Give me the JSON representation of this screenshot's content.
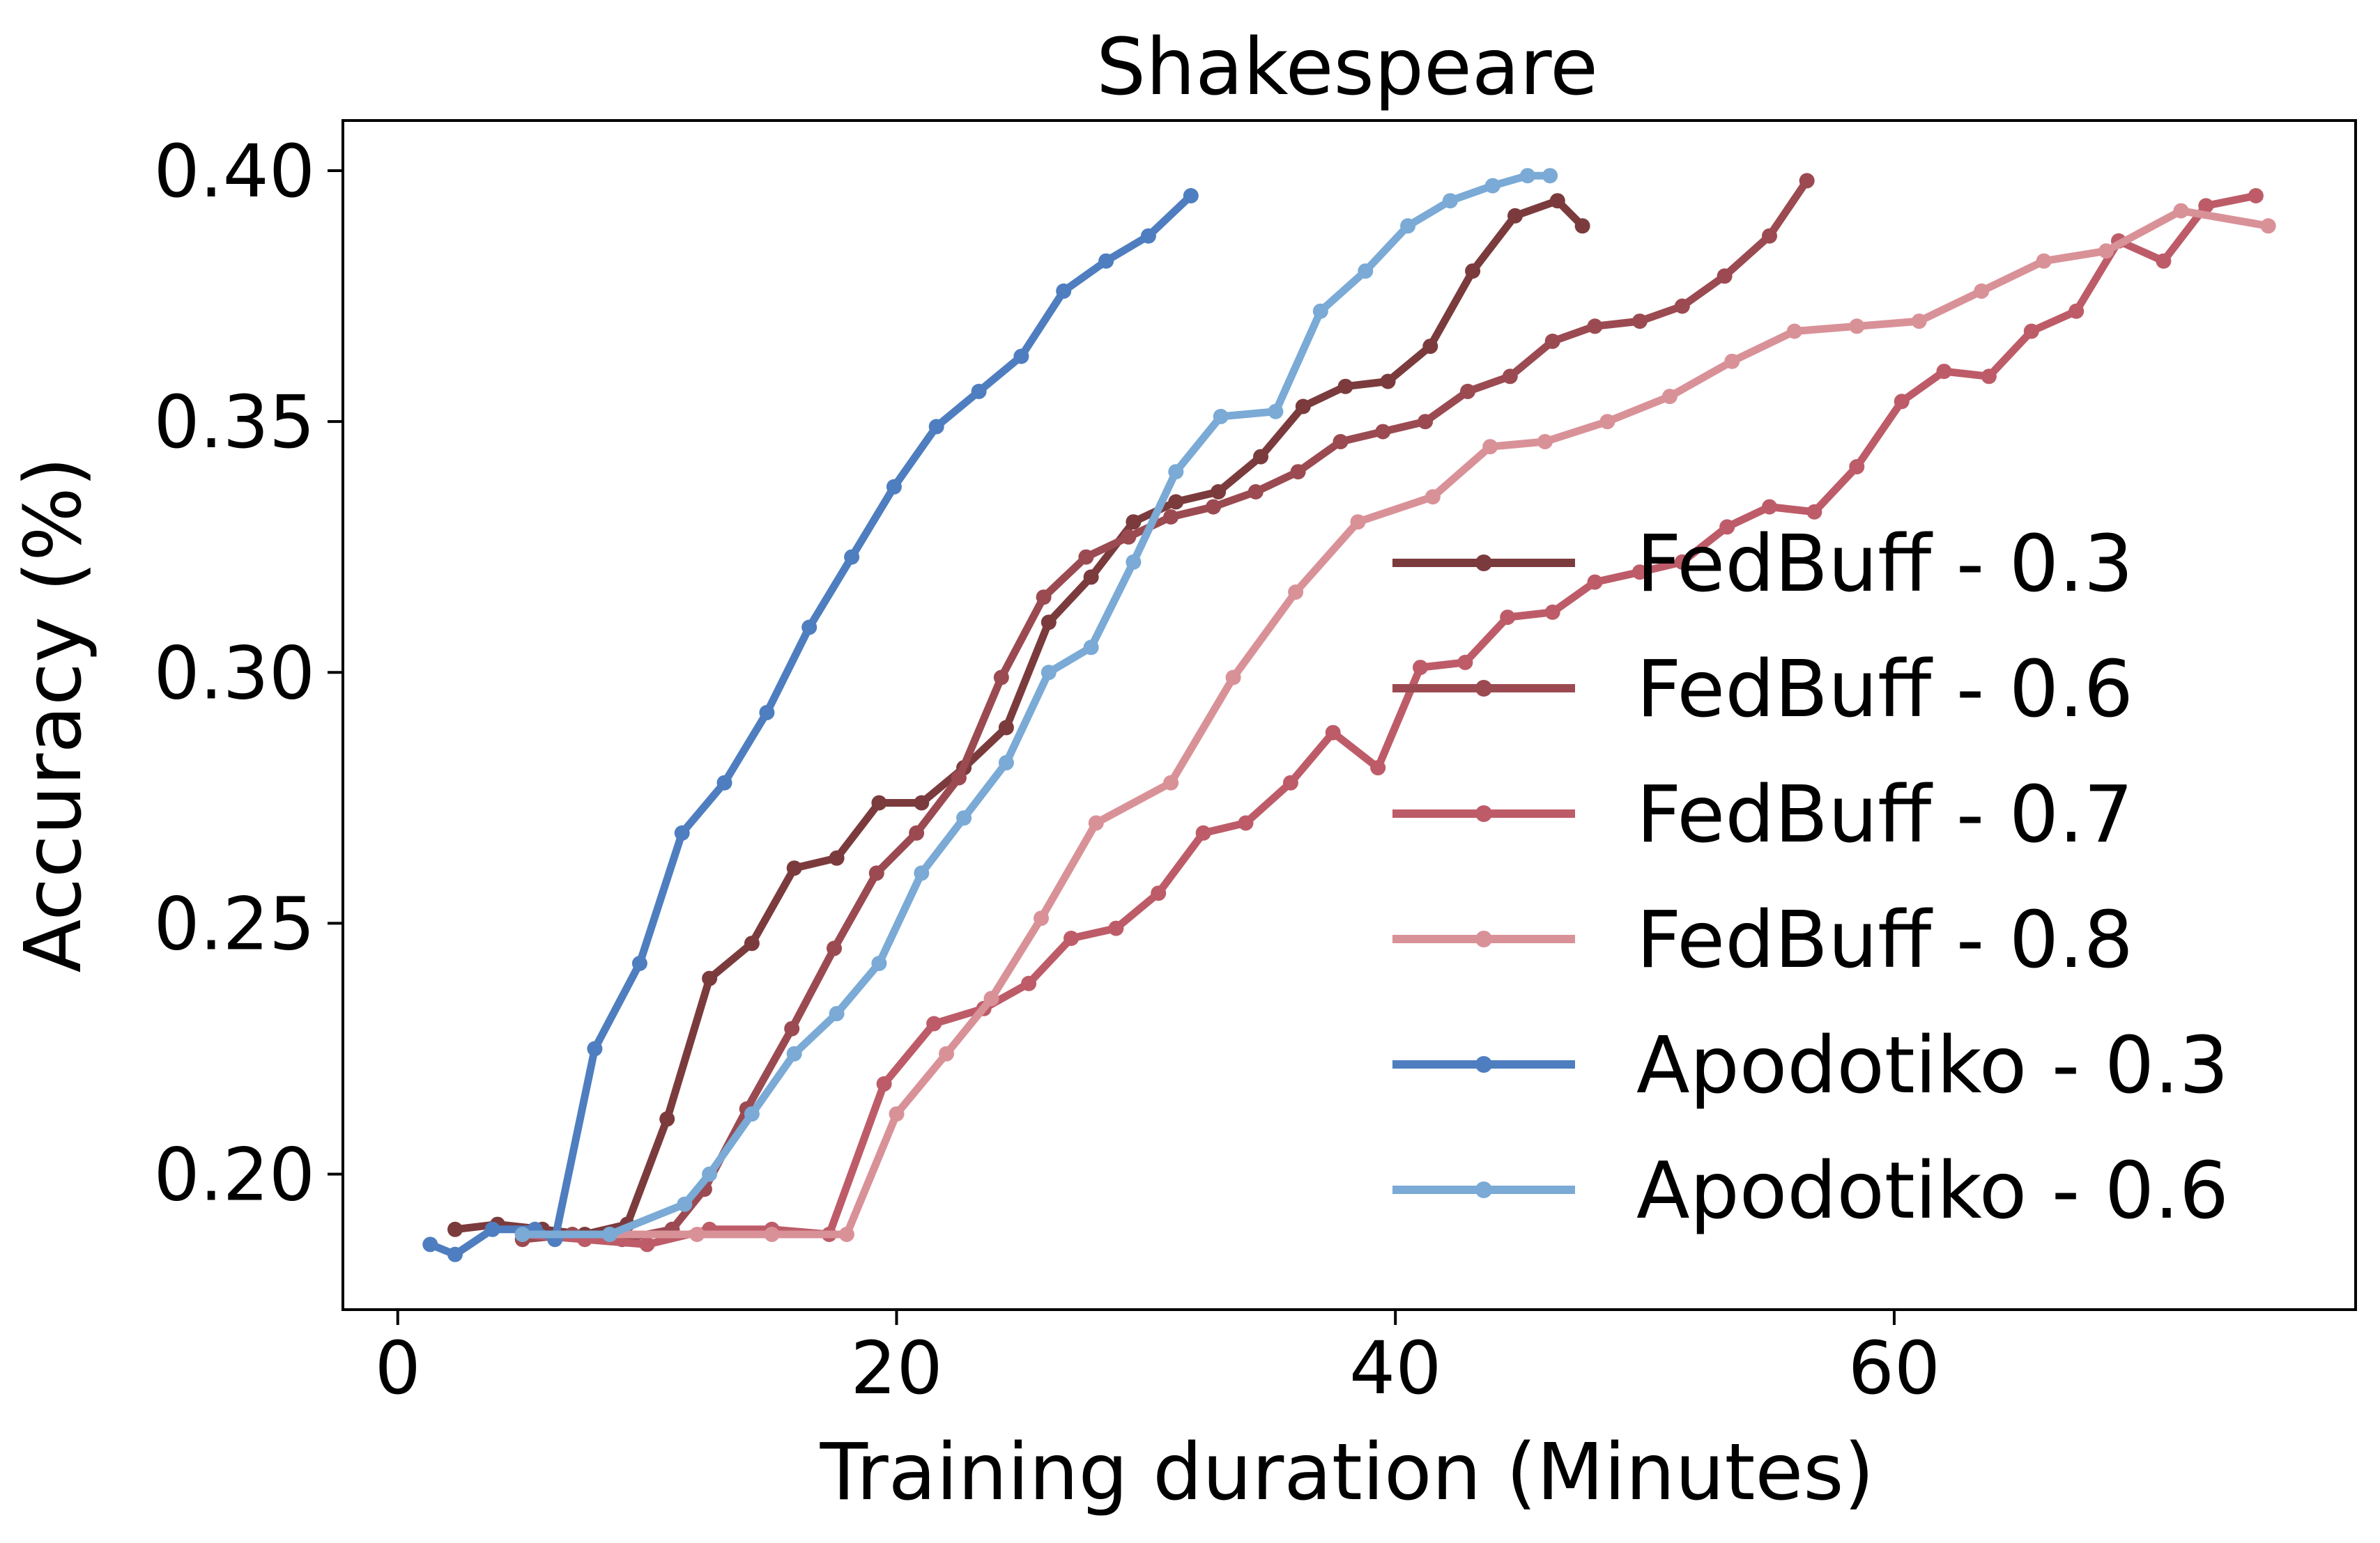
{
  "chart_data": {
    "type": "line",
    "title": "Shakespeare",
    "xlabel": "Training duration (Minutes)",
    "ylabel": "Accuracy (%)",
    "xlim": [
      -2.2,
      78.5
    ],
    "ylim": [
      0.173,
      0.41
    ],
    "xticks": [
      0,
      20,
      40,
      60
    ],
    "xtick_labels": [
      "0",
      "20",
      "40",
      "60"
    ],
    "yticks": [
      0.2,
      0.25,
      0.3,
      0.35,
      0.4
    ],
    "ytick_labels": [
      "0.20",
      "0.25",
      "0.30",
      "0.35",
      "0.40"
    ],
    "grid": false,
    "legend_position": "right",
    "series": [
      {
        "name": "FedBuff - 0.3",
        "color": "#7b3b3d",
        "x": [
          2.3,
          4.0,
          5.8,
          7.5,
          9.2,
          10.8,
          12.5,
          14.2,
          15.9,
          17.6,
          19.3,
          21.0,
          22.7,
          24.4,
          26.1,
          27.8,
          29.5,
          31.2,
          32.9,
          34.6,
          36.3,
          38.0,
          39.7,
          41.4,
          43.1,
          44.8,
          46.5,
          47.5
        ],
        "y": [
          0.189,
          0.19,
          0.189,
          0.188,
          0.19,
          0.211,
          0.239,
          0.246,
          0.261,
          0.263,
          0.274,
          0.274,
          0.281,
          0.289,
          0.31,
          0.319,
          0.33,
          0.334,
          0.336,
          0.343,
          0.353,
          0.357,
          0.358,
          0.365,
          0.38,
          0.391,
          0.394,
          0.389
        ]
      },
      {
        "name": "FedBuff - 0.6",
        "color": "#9b4a51",
        "x": [
          5.0,
          7.0,
          9.0,
          11.0,
          12.3,
          14.0,
          15.8,
          17.5,
          19.2,
          20.8,
          22.5,
          24.2,
          25.9,
          27.6,
          29.3,
          31.0,
          32.7,
          34.4,
          36.1,
          37.8,
          39.5,
          41.2,
          42.9,
          44.6,
          46.3,
          48.0,
          49.8,
          51.5,
          53.2,
          55.0,
          56.5
        ],
        "y": [
          0.187,
          0.188,
          0.187,
          0.189,
          0.197,
          0.213,
          0.229,
          0.245,
          0.26,
          0.268,
          0.279,
          0.299,
          0.315,
          0.323,
          0.327,
          0.331,
          0.333,
          0.336,
          0.34,
          0.346,
          0.348,
          0.35,
          0.356,
          0.359,
          0.366,
          0.369,
          0.37,
          0.373,
          0.379,
          0.387,
          0.398
        ]
      },
      {
        "name": "FedBuff - 0.7",
        "color": "#bd5c68",
        "x": [
          5.0,
          7.5,
          10.0,
          12.5,
          15.0,
          17.3,
          19.5,
          21.5,
          23.5,
          25.3,
          27.0,
          28.8,
          30.5,
          32.3,
          34.0,
          35.8,
          37.5,
          39.3,
          41.0,
          42.8,
          44.5,
          46.3,
          48.0,
          49.8,
          51.5,
          53.3,
          55.0,
          56.8,
          58.5,
          60.3,
          62.0,
          63.8,
          65.5,
          67.3,
          69.0,
          70.8,
          72.5,
          74.5
        ],
        "y": [
          0.188,
          0.187,
          0.186,
          0.189,
          0.189,
          0.188,
          0.218,
          0.23,
          0.233,
          0.238,
          0.247,
          0.249,
          0.256,
          0.268,
          0.27,
          0.278,
          0.288,
          0.281,
          0.301,
          0.302,
          0.311,
          0.312,
          0.318,
          0.32,
          0.322,
          0.329,
          0.333,
          0.332,
          0.341,
          0.354,
          0.36,
          0.359,
          0.368,
          0.372,
          0.386,
          0.382,
          0.393,
          0.395
        ]
      },
      {
        "name": "FedBuff - 0.8",
        "color": "#d99198",
        "x": [
          8.5,
          12.0,
          15.0,
          18.0,
          20.0,
          22.0,
          23.8,
          25.8,
          28.0,
          31.0,
          33.5,
          36.0,
          38.5,
          41.5,
          43.8,
          46.0,
          48.5,
          51.0,
          53.5,
          56.0,
          58.5,
          61.0,
          63.5,
          66.0,
          68.5,
          71.5,
          75.0
        ],
        "y": [
          0.188,
          0.188,
          0.188,
          0.188,
          0.212,
          0.224,
          0.235,
          0.251,
          0.27,
          0.278,
          0.299,
          0.316,
          0.33,
          0.335,
          0.345,
          0.346,
          0.35,
          0.355,
          0.362,
          0.368,
          0.369,
          0.37,
          0.376,
          0.382,
          0.384,
          0.392,
          0.389
        ]
      },
      {
        "name": "Apodotiko - 0.3",
        "color": "#4e7ebf",
        "x": [
          1.3,
          2.3,
          3.8,
          5.5,
          6.3,
          7.9,
          9.7,
          11.4,
          13.1,
          14.8,
          16.5,
          18.2,
          19.9,
          21.6,
          23.3,
          25.0,
          26.7,
          28.4,
          30.1,
          31.8
        ],
        "y": [
          0.186,
          0.184,
          0.189,
          0.189,
          0.187,
          0.225,
          0.242,
          0.268,
          0.278,
          0.292,
          0.309,
          0.323,
          0.337,
          0.349,
          0.356,
          0.363,
          0.376,
          0.382,
          0.387,
          0.395
        ]
      },
      {
        "name": "Apodotiko - 0.6",
        "color": "#7aaad5",
        "x": [
          5.0,
          8.5,
          11.5,
          12.5,
          14.2,
          15.9,
          17.6,
          19.3,
          21.0,
          22.7,
          24.4,
          26.1,
          27.8,
          29.5,
          31.2,
          33.0,
          35.2,
          37.0,
          38.8,
          40.5,
          42.2,
          43.9,
          45.3,
          46.2
        ],
        "y": [
          0.188,
          0.188,
          0.194,
          0.2,
          0.212,
          0.224,
          0.232,
          0.242,
          0.26,
          0.271,
          0.282,
          0.3,
          0.305,
          0.322,
          0.34,
          0.351,
          0.352,
          0.372,
          0.38,
          0.389,
          0.394,
          0.397,
          0.399,
          0.399
        ]
      }
    ]
  }
}
